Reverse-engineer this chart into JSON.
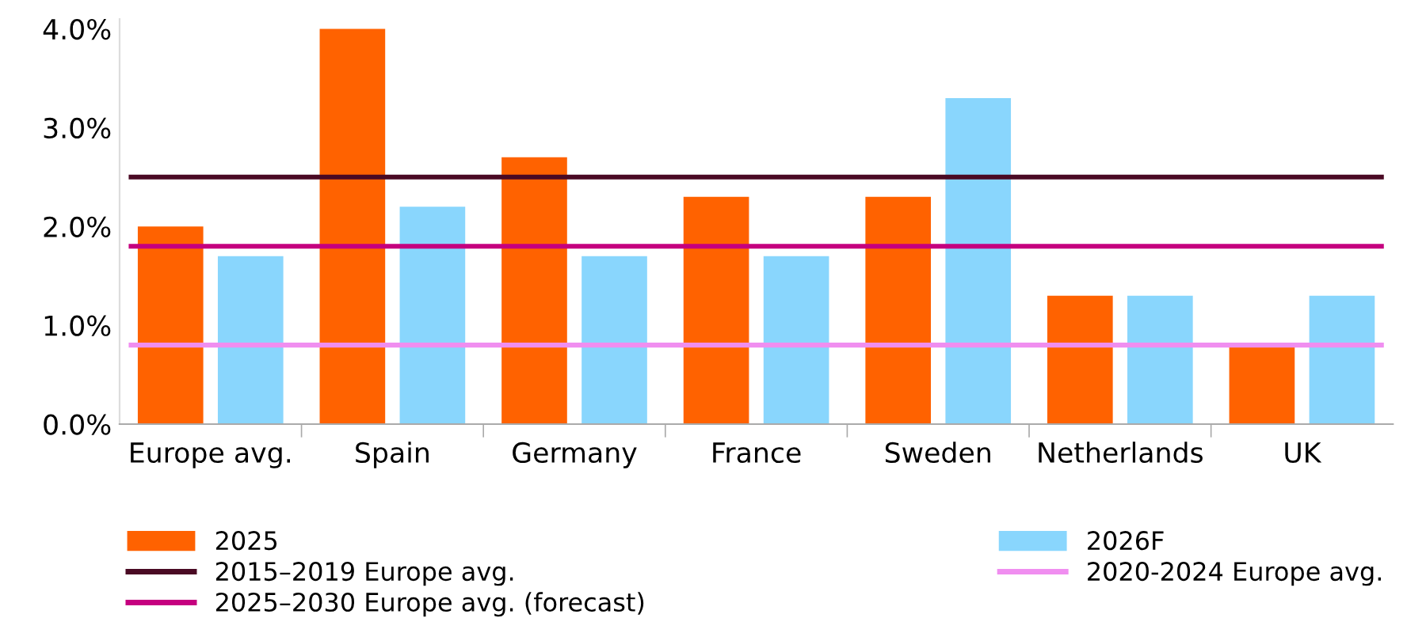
{
  "chart_data": {
    "type": "bar",
    "categories": [
      "Europe avg.",
      "Spain",
      "Germany",
      "France",
      "Sweden",
      "Netherlands",
      "UK"
    ],
    "series": [
      {
        "name": "2025",
        "color": "#ff6200",
        "values": [
          2.0,
          4.0,
          2.7,
          2.3,
          2.3,
          1.3,
          0.8
        ]
      },
      {
        "name": "2026F",
        "color": "#89d6fd",
        "values": [
          1.7,
          2.2,
          1.7,
          1.7,
          3.3,
          1.3,
          1.3
        ]
      }
    ],
    "ref_lines": [
      {
        "axis": "y",
        "value": 2.5,
        "label": "2015–2019 Europe avg.",
        "color": "#4a0a24",
        "line_style": "solid"
      },
      {
        "axis": "y",
        "value": 0.8,
        "label": "2020-2024 Europe avg.",
        "color": "#f08ef0",
        "line_style": "solid"
      },
      {
        "axis": "y",
        "value": 1.8,
        "label": "2025–2030 Europe avg. (forecast)",
        "color": "#c5007f",
        "line_style": "solid"
      }
    ],
    "ylim": [
      0,
      4.1
    ],
    "yticks": [
      {
        "value": 0,
        "label": "0.0%"
      },
      {
        "value": 1,
        "label": "1.0%"
      },
      {
        "value": 2,
        "label": "2.0%"
      },
      {
        "value": 3,
        "label": "3.0%"
      },
      {
        "value": 4,
        "label": "4.0%"
      }
    ],
    "grid": false,
    "legend": "bottom"
  }
}
